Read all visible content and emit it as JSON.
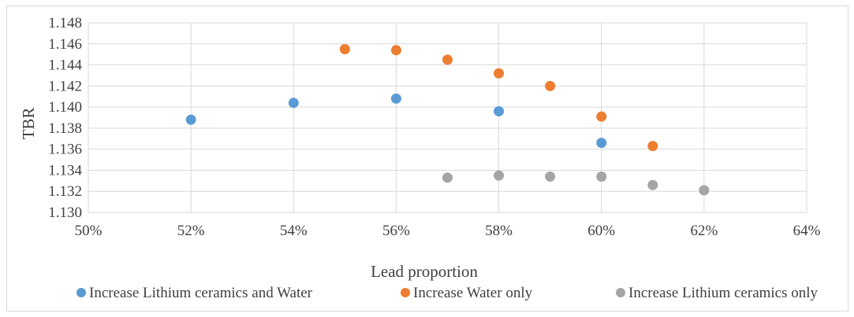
{
  "chart_data": {
    "type": "scatter",
    "xlabel": "Lead proportion",
    "ylabel": "TBR",
    "xlim": [
      0.5,
      0.64
    ],
    "ylim": [
      1.13,
      1.148
    ],
    "x_ticks": [
      0.5,
      0.52,
      0.54,
      0.56,
      0.58,
      0.6,
      0.62,
      0.64
    ],
    "x_tick_labels": [
      "50%",
      "52%",
      "54%",
      "56%",
      "58%",
      "60%",
      "62%",
      "64%"
    ],
    "y_ticks": [
      1.13,
      1.132,
      1.134,
      1.136,
      1.138,
      1.14,
      1.142,
      1.144,
      1.146,
      1.148
    ],
    "y_tick_labels": [
      "1.130",
      "1.132",
      "1.134",
      "1.136",
      "1.138",
      "1.140",
      "1.142",
      "1.144",
      "1.146",
      "1.148"
    ],
    "grid": true,
    "legend_position": "bottom",
    "series": [
      {
        "name": "Increase Lithium ceramics and Water",
        "color": "#5b9bd5",
        "points": [
          [
            0.52,
            1.1388
          ],
          [
            0.54,
            1.1404
          ],
          [
            0.56,
            1.1408
          ],
          [
            0.58,
            1.1396
          ],
          [
            0.6,
            1.1366
          ]
        ]
      },
      {
        "name": "Increase Water only",
        "color": "#ed7d31",
        "points": [
          [
            0.55,
            1.1455
          ],
          [
            0.56,
            1.1454
          ],
          [
            0.57,
            1.1445
          ],
          [
            0.58,
            1.1432
          ],
          [
            0.59,
            1.142
          ],
          [
            0.6,
            1.1391
          ],
          [
            0.61,
            1.1363
          ]
        ]
      },
      {
        "name": "Increase Lithium ceramics only",
        "color": "#a5a5a5",
        "points": [
          [
            0.57,
            1.1333
          ],
          [
            0.58,
            1.1335
          ],
          [
            0.59,
            1.1334
          ],
          [
            0.6,
            1.1334
          ],
          [
            0.61,
            1.1326
          ],
          [
            0.62,
            1.1321
          ]
        ]
      }
    ]
  }
}
